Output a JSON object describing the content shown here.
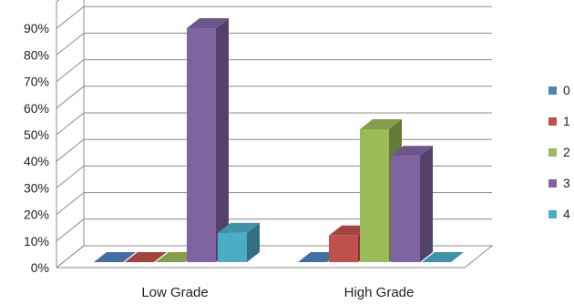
{
  "chart_data": {
    "type": "bar",
    "style": "3d-clustered-column",
    "categories": [
      "Low Grade",
      "High Grade"
    ],
    "series": [
      {
        "name": "0",
        "values": [
          0,
          0
        ],
        "color": "#4F81BD"
      },
      {
        "name": "1",
        "values": [
          0,
          10
        ],
        "color": "#C0504D"
      },
      {
        "name": "2",
        "values": [
          0,
          50
        ],
        "color": "#9BBB59"
      },
      {
        "name": "3",
        "values": [
          88,
          40
        ],
        "color": "#8064A2"
      },
      {
        "name": "4",
        "values": [
          11,
          0
        ],
        "color": "#4BACC6"
      }
    ],
    "y_ticks": [
      "0%",
      "10%",
      "20%",
      "30%",
      "40%",
      "50%",
      "60%",
      "70%",
      "80%",
      "90%"
    ],
    "ylim": [
      0,
      100
    ],
    "y_unit": "percent",
    "grid": true,
    "legend_position": "right"
  }
}
